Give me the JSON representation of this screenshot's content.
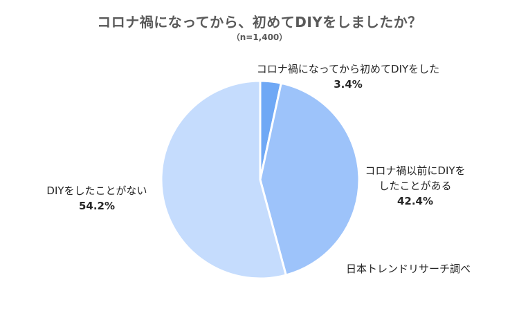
{
  "chart_data": {
    "type": "pie",
    "title": "コロナ禍になってから、初めてDIYをしましたか？",
    "subtitle": "（n=1,400）",
    "slices": [
      {
        "label": "コロナ禍になってから初めてDIYをした",
        "label_lines": [
          "コロナ禍になってから初めてDIYをした"
        ],
        "value": 3.4,
        "value_label": "3.4%",
        "color": "#6fa8f5"
      },
      {
        "label": "コロナ禍以前にDIYをしたことがある",
        "label_lines": [
          "コロナ禍以前にDIYを",
          "したことがある"
        ],
        "value": 42.4,
        "value_label": "42.4%",
        "color": "#9dc3fa"
      },
      {
        "label": "DIYをしたことがない",
        "label_lines": [
          "DIYをしたことがない"
        ],
        "value": 54.2,
        "value_label": "54.2%",
        "color": "#c5dcfd"
      }
    ],
    "start_angle_deg": 0,
    "direction": "clockwise"
  },
  "source": "日本トレンドリサーチ調べ"
}
